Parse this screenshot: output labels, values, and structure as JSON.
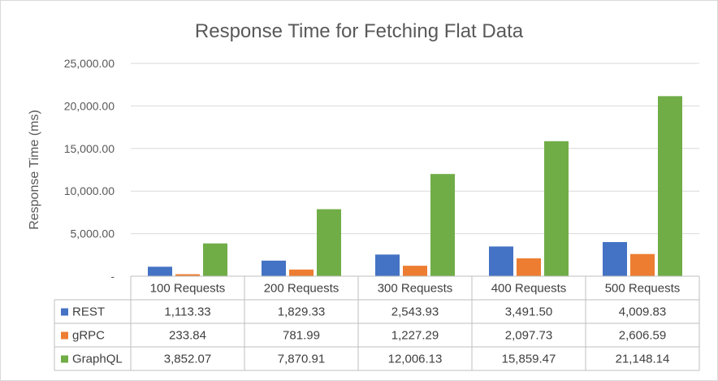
{
  "chart_data": {
    "type": "bar",
    "title": "Response Time for Fetching Flat Data",
    "ylabel": "Response Time (ms)",
    "xlabel": "",
    "ylim": [
      0,
      25000
    ],
    "yticks": [
      0,
      5000,
      10000,
      15000,
      20000,
      25000
    ],
    "ytick_labels": [
      "-",
      "5,000.00",
      "10,000.00",
      "15,000.00",
      "20,000.00",
      "25,000.00"
    ],
    "categories": [
      "100 Requests",
      "200 Requests",
      "300 Requests",
      "400 Requests",
      "500 Requests"
    ],
    "series": [
      {
        "name": "REST",
        "color": "#4472c4",
        "values": [
          1113.33,
          1829.33,
          2543.93,
          3491.5,
          4009.83
        ],
        "labels": [
          "1,113.33",
          "1,829.33",
          "2,543.93",
          "3,491.50",
          "4,009.83"
        ]
      },
      {
        "name": "gRPC",
        "color": "#ed7d31",
        "values": [
          233.84,
          781.99,
          1227.29,
          2097.73,
          2606.59
        ],
        "labels": [
          "233.84",
          "781.99",
          "1,227.29",
          "2,097.73",
          "2,606.59"
        ]
      },
      {
        "name": "GraphQL",
        "color": "#70ad47",
        "values": [
          3852.07,
          7870.91,
          12006.13,
          15859.47,
          21148.14
        ],
        "labels": [
          "3,852.07",
          "7,870.91",
          "12,006.13",
          "15,859.47",
          "21,148.14"
        ]
      }
    ],
    "grid": true,
    "legend": "data-table"
  }
}
